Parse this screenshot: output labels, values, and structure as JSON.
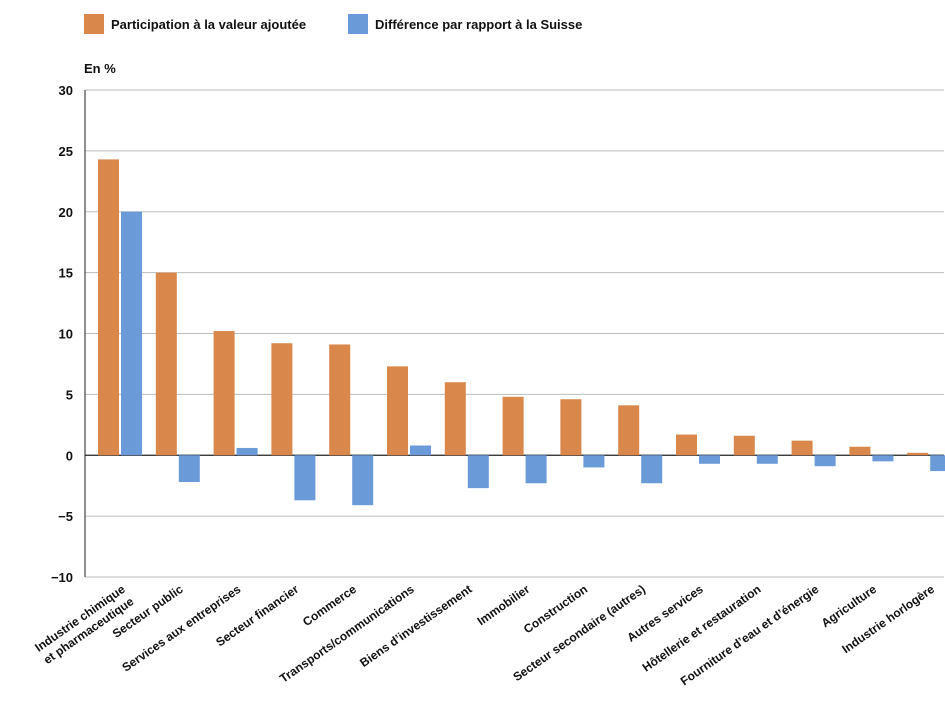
{
  "chart_data": {
    "type": "bar",
    "ylabel": "En %",
    "ylim": [
      -10,
      30
    ],
    "yticks": [
      30,
      25,
      20,
      15,
      10,
      5,
      0,
      -5,
      -10
    ],
    "ytick_labels": [
      "30",
      "25",
      "20",
      "15",
      "10",
      "5",
      "0",
      "−5",
      "−10"
    ],
    "grid": true,
    "legend_position": "top-left",
    "categories": [
      [
        "Industrie chimique",
        "et pharmaceutique"
      ],
      [
        "Secteur public"
      ],
      [
        "Services aux entreprises"
      ],
      [
        "Secteur financier"
      ],
      [
        "Commerce"
      ],
      [
        "Transports/communications"
      ],
      [
        "Biens d’investissement"
      ],
      [
        "Immobilier"
      ],
      [
        "Construction"
      ],
      [
        "Secteur secondaire (autres)"
      ],
      [
        "Autres services"
      ],
      [
        "Hôtellerie et restauration"
      ],
      [
        "Fourniture d’eau et d’énergie"
      ],
      [
        "Agriculture"
      ],
      [
        "Industrie horlogère"
      ]
    ],
    "series": [
      {
        "name": "Participation à la valeur ajoutée",
        "color": "#d9874a",
        "values": [
          24.3,
          15.0,
          10.2,
          9.2,
          9.1,
          7.3,
          6.0,
          4.8,
          4.6,
          4.1,
          1.7,
          1.6,
          1.2,
          0.7,
          0.2
        ]
      },
      {
        "name": "Différence par rapport à la Suisse",
        "color": "#6a9ad8",
        "values": [
          20.0,
          -2.2,
          0.6,
          -3.7,
          -4.1,
          0.8,
          -2.7,
          -2.3,
          -1.0,
          -2.3,
          -0.7,
          -0.7,
          -0.9,
          -0.5,
          -1.3
        ]
      }
    ]
  }
}
